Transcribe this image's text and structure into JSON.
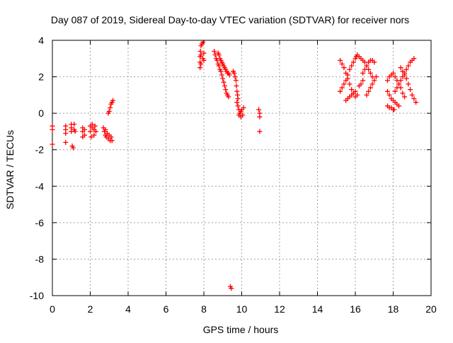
{
  "chart_data": {
    "type": "scatter",
    "title": "Day 087 of 2019, Sidereal Day-to-day VTEC variation (SDTVAR) for receiver nors",
    "xlabel": "GPS time / hours",
    "ylabel": "SDTVAR / TECUs",
    "xlim": [
      0,
      20
    ],
    "ylim": [
      -10,
      4
    ],
    "xticks": [
      0,
      2,
      4,
      6,
      8,
      10,
      12,
      14,
      16,
      18,
      20
    ],
    "yticks": [
      -10,
      -8,
      -6,
      -4,
      -2,
      0,
      2,
      4
    ],
    "grid": true,
    "marker": "+",
    "series": [
      {
        "name": "SDTVAR",
        "color": "#ff0000",
        "points": [
          [
            0.0,
            -0.7
          ],
          [
            0.0,
            -0.9
          ],
          [
            0.0,
            -1.7
          ],
          [
            0.7,
            -0.7
          ],
          [
            0.7,
            -0.9
          ],
          [
            0.7,
            -1.1
          ],
          [
            0.7,
            -1.6
          ],
          [
            1.0,
            -0.6
          ],
          [
            1.0,
            -0.8
          ],
          [
            1.0,
            -1.0
          ],
          [
            1.05,
            -1.8
          ],
          [
            1.1,
            -1.9
          ],
          [
            1.15,
            -0.9
          ],
          [
            1.15,
            -0.6
          ],
          [
            1.2,
            -1.0
          ],
          [
            1.6,
            -0.8
          ],
          [
            1.6,
            -1.0
          ],
          [
            1.6,
            -1.3
          ],
          [
            1.7,
            -1.2
          ],
          [
            1.7,
            -0.9
          ],
          [
            2.0,
            -0.7
          ],
          [
            2.0,
            -1.0
          ],
          [
            2.05,
            -1.3
          ],
          [
            2.1,
            -0.8
          ],
          [
            2.1,
            -0.6
          ],
          [
            2.2,
            -0.9
          ],
          [
            2.2,
            -1.2
          ],
          [
            2.25,
            -0.7
          ],
          [
            2.3,
            -1.0
          ],
          [
            2.7,
            -0.8
          ],
          [
            2.75,
            -1.0
          ],
          [
            2.8,
            -1.2
          ],
          [
            2.8,
            -0.9
          ],
          [
            2.85,
            -1.3
          ],
          [
            2.9,
            -1.1
          ],
          [
            2.95,
            -1.4
          ],
          [
            3.0,
            -1.2
          ],
          [
            3.05,
            -1.5
          ],
          [
            3.1,
            -1.3
          ],
          [
            3.15,
            -1.5
          ],
          [
            2.95,
            0.0
          ],
          [
            3.0,
            0.1
          ],
          [
            3.05,
            0.3
          ],
          [
            3.1,
            0.5
          ],
          [
            3.15,
            0.6
          ],
          [
            3.2,
            0.7
          ],
          [
            7.8,
            2.5
          ],
          [
            7.8,
            2.8
          ],
          [
            7.8,
            3.1
          ],
          [
            7.82,
            3.4
          ],
          [
            7.85,
            2.7
          ],
          [
            7.85,
            3.2
          ],
          [
            7.85,
            3.7
          ],
          [
            7.9,
            3.8
          ],
          [
            7.95,
            3.9
          ],
          [
            7.95,
            3.0
          ],
          [
            8.0,
            2.9
          ],
          [
            8.0,
            3.3
          ],
          [
            8.55,
            3.4
          ],
          [
            8.6,
            3.2
          ],
          [
            8.65,
            3.0
          ],
          [
            8.7,
            2.9
          ],
          [
            8.75,
            2.7
          ],
          [
            8.8,
            2.6
          ],
          [
            8.85,
            2.4
          ],
          [
            8.9,
            2.3
          ],
          [
            8.95,
            2.1
          ],
          [
            9.0,
            1.9
          ],
          [
            9.05,
            1.7
          ],
          [
            9.1,
            1.5
          ],
          [
            9.15,
            1.3
          ],
          [
            9.2,
            1.1
          ],
          [
            9.25,
            1.0
          ],
          [
            9.3,
            0.9
          ],
          [
            8.75,
            3.3
          ],
          [
            8.8,
            3.2
          ],
          [
            8.85,
            3.0
          ],
          [
            8.9,
            2.9
          ],
          [
            8.95,
            2.8
          ],
          [
            9.0,
            2.7
          ],
          [
            9.05,
            2.6
          ],
          [
            9.1,
            2.5
          ],
          [
            9.15,
            2.4
          ],
          [
            9.2,
            2.3
          ],
          [
            9.25,
            2.2
          ],
          [
            9.3,
            2.2
          ],
          [
            9.35,
            2.1
          ],
          [
            9.55,
            2.3
          ],
          [
            9.6,
            2.2
          ],
          [
            9.65,
            2.0
          ],
          [
            9.7,
            1.8
          ],
          [
            9.72,
            1.5
          ],
          [
            9.75,
            1.2
          ],
          [
            9.78,
            1.0
          ],
          [
            9.8,
            0.8
          ],
          [
            9.75,
            0.6
          ],
          [
            9.8,
            0.4
          ],
          [
            9.85,
            0.2
          ],
          [
            9.9,
            0.0
          ],
          [
            9.95,
            0.1
          ],
          [
            10.0,
            0.2
          ],
          [
            10.05,
            -0.1
          ],
          [
            10.1,
            0.3
          ],
          [
            9.85,
            -0.1
          ],
          [
            9.95,
            -0.2
          ],
          [
            10.9,
            0.2
          ],
          [
            10.95,
            0.0
          ],
          [
            10.95,
            -0.2
          ],
          [
            10.95,
            -1.0
          ],
          [
            9.4,
            -9.5
          ],
          [
            9.45,
            -9.6
          ],
          [
            15.2,
            1.2
          ],
          [
            15.3,
            1.4
          ],
          [
            15.4,
            1.6
          ],
          [
            15.5,
            1.8
          ],
          [
            15.6,
            2.1
          ],
          [
            15.7,
            2.4
          ],
          [
            15.8,
            2.6
          ],
          [
            15.9,
            2.8
          ],
          [
            16.0,
            3.0
          ],
          [
            16.05,
            3.1
          ],
          [
            15.2,
            2.9
          ],
          [
            15.3,
            2.7
          ],
          [
            15.4,
            2.5
          ],
          [
            15.5,
            2.2
          ],
          [
            15.6,
            1.9
          ],
          [
            15.7,
            1.6
          ],
          [
            15.8,
            1.3
          ],
          [
            15.9,
            1.1
          ],
          [
            16.0,
            0.9
          ],
          [
            16.1,
            1.0
          ],
          [
            15.5,
            0.7
          ],
          [
            15.6,
            0.8
          ],
          [
            15.7,
            0.9
          ],
          [
            15.8,
            1.0
          ],
          [
            15.9,
            1.1
          ],
          [
            16.0,
            1.2
          ],
          [
            16.2,
            1.5
          ],
          [
            16.3,
            1.6
          ],
          [
            16.4,
            1.8
          ],
          [
            16.1,
            3.2
          ],
          [
            16.2,
            3.1
          ],
          [
            16.3,
            3.0
          ],
          [
            16.4,
            2.9
          ],
          [
            16.5,
            2.8
          ],
          [
            16.6,
            2.6
          ],
          [
            16.7,
            2.4
          ],
          [
            16.8,
            2.2
          ],
          [
            16.9,
            2.0
          ],
          [
            16.6,
            1.0
          ],
          [
            16.7,
            1.2
          ],
          [
            16.8,
            1.4
          ],
          [
            16.9,
            1.6
          ],
          [
            17.0,
            1.8
          ],
          [
            17.1,
            2.0
          ],
          [
            16.4,
            2.2
          ],
          [
            16.5,
            2.4
          ],
          [
            16.6,
            2.6
          ],
          [
            16.7,
            2.8
          ],
          [
            16.8,
            2.9
          ],
          [
            16.9,
            2.9
          ],
          [
            17.0,
            2.8
          ],
          [
            17.7,
            0.4
          ],
          [
            17.8,
            0.3
          ],
          [
            17.9,
            0.3
          ],
          [
            18.0,
            0.2
          ],
          [
            18.05,
            0.2
          ],
          [
            17.7,
            1.8
          ],
          [
            17.8,
            2.0
          ],
          [
            17.9,
            2.1
          ],
          [
            18.0,
            2.2
          ],
          [
            18.1,
            2.0
          ],
          [
            18.2,
            1.8
          ],
          [
            18.3,
            1.6
          ],
          [
            18.4,
            1.4
          ],
          [
            18.5,
            1.1
          ],
          [
            18.6,
            0.9
          ],
          [
            17.7,
            1.2
          ],
          [
            17.8,
            1.0
          ],
          [
            17.9,
            0.8
          ],
          [
            18.0,
            0.7
          ],
          [
            18.1,
            0.6
          ],
          [
            18.2,
            0.5
          ],
          [
            18.3,
            0.4
          ],
          [
            18.1,
            1.2
          ],
          [
            18.2,
            1.4
          ],
          [
            18.3,
            1.6
          ],
          [
            18.4,
            1.8
          ],
          [
            18.5,
            2.0
          ],
          [
            18.6,
            2.2
          ],
          [
            18.7,
            2.4
          ],
          [
            18.8,
            2.6
          ],
          [
            18.9,
            2.8
          ],
          [
            19.0,
            2.9
          ],
          [
            19.1,
            3.0
          ],
          [
            18.4,
            2.5
          ],
          [
            18.5,
            2.3
          ],
          [
            18.6,
            2.1
          ],
          [
            18.7,
            1.9
          ],
          [
            18.8,
            1.6
          ],
          [
            18.9,
            1.3
          ],
          [
            19.0,
            1.0
          ],
          [
            19.1,
            0.8
          ],
          [
            19.2,
            0.6
          ]
        ]
      }
    ]
  }
}
